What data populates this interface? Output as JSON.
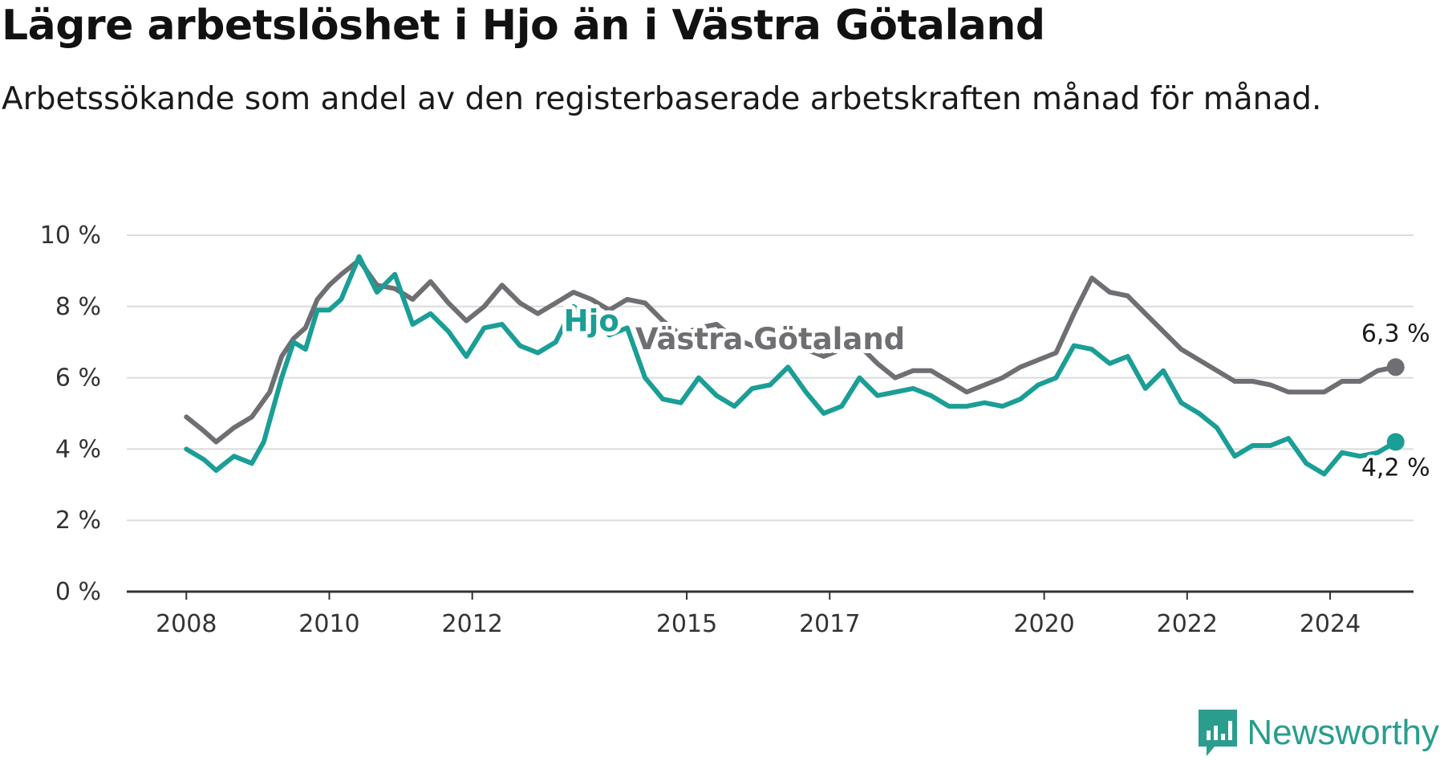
{
  "title": "Lägre arbetslöshet i Hjo än i Västra Götaland",
  "subtitle": "Arbetssökande som andel av den registerbaserade arbetskraften månad för månad.",
  "brand": {
    "name": "Newsworthy",
    "color": "#2a9d8f",
    "icon": "newsworthy-logo-icon"
  },
  "chart_data": {
    "type": "line",
    "title": "Lägre arbetslöshet i Hjo än i Västra Götaland",
    "subtitle": "Arbetssökande som andel av den registerbaserade arbetskraften månad för månad.",
    "xlabel": "",
    "ylabel": "",
    "x_ticks": [
      "2008",
      "2010",
      "2012",
      "2015",
      "2017",
      "2020",
      "2022",
      "2024"
    ],
    "y_ticks": [
      "0 %",
      "2 %",
      "4 %",
      "6 %",
      "8 %",
      "10 %"
    ],
    "ylim": [
      0,
      10
    ],
    "xlim": [
      "2007-03",
      "2025-03"
    ],
    "grid": true,
    "series": [
      {
        "name": "Västra Götaland",
        "color": "#6e6e73",
        "end_label": "6,3 %",
        "points": [
          [
            "2008-01",
            4.9
          ],
          [
            "2008-04",
            4.5
          ],
          [
            "2008-06",
            4.2
          ],
          [
            "2008-09",
            4.6
          ],
          [
            "2008-12",
            4.9
          ],
          [
            "2009-03",
            5.6
          ],
          [
            "2009-05",
            6.6
          ],
          [
            "2009-07",
            7.1
          ],
          [
            "2009-09",
            7.4
          ],
          [
            "2009-11",
            8.2
          ],
          [
            "2010-01",
            8.6
          ],
          [
            "2010-03",
            8.9
          ],
          [
            "2010-06",
            9.3
          ],
          [
            "2010-09",
            8.6
          ],
          [
            "2010-12",
            8.5
          ],
          [
            "2011-03",
            8.2
          ],
          [
            "2011-06",
            8.7
          ],
          [
            "2011-09",
            8.1
          ],
          [
            "2011-12",
            7.6
          ],
          [
            "2012-03",
            8.0
          ],
          [
            "2012-06",
            8.6
          ],
          [
            "2012-09",
            8.1
          ],
          [
            "2012-12",
            7.8
          ],
          [
            "2013-03",
            8.1
          ],
          [
            "2013-06",
            8.4
          ],
          [
            "2013-09",
            8.2
          ],
          [
            "2013-12",
            7.9
          ],
          [
            "2014-03",
            8.2
          ],
          [
            "2014-06",
            8.1
          ],
          [
            "2014-09",
            7.6
          ],
          [
            "2014-12",
            7.2
          ],
          [
            "2015-03",
            7.4
          ],
          [
            "2015-06",
            7.5
          ],
          [
            "2015-09",
            7.1
          ],
          [
            "2015-12",
            6.9
          ],
          [
            "2016-03",
            7.1
          ],
          [
            "2016-06",
            7.2
          ],
          [
            "2016-09",
            6.8
          ],
          [
            "2016-12",
            6.6
          ],
          [
            "2017-03",
            6.8
          ],
          [
            "2017-06",
            6.9
          ],
          [
            "2017-09",
            6.4
          ],
          [
            "2017-12",
            6.0
          ],
          [
            "2018-03",
            6.2
          ],
          [
            "2018-06",
            6.2
          ],
          [
            "2018-09",
            5.9
          ],
          [
            "2018-12",
            5.6
          ],
          [
            "2019-03",
            5.8
          ],
          [
            "2019-06",
            6.0
          ],
          [
            "2019-09",
            6.3
          ],
          [
            "2019-12",
            6.5
          ],
          [
            "2020-03",
            6.7
          ],
          [
            "2020-06",
            7.8
          ],
          [
            "2020-09",
            8.8
          ],
          [
            "2020-12",
            8.4
          ],
          [
            "2021-03",
            8.3
          ],
          [
            "2021-06",
            7.8
          ],
          [
            "2021-09",
            7.3
          ],
          [
            "2021-12",
            6.8
          ],
          [
            "2022-03",
            6.5
          ],
          [
            "2022-06",
            6.2
          ],
          [
            "2022-09",
            5.9
          ],
          [
            "2022-12",
            5.9
          ],
          [
            "2023-03",
            5.8
          ],
          [
            "2023-06",
            5.6
          ],
          [
            "2023-09",
            5.6
          ],
          [
            "2023-12",
            5.6
          ],
          [
            "2024-03",
            5.9
          ],
          [
            "2024-06",
            5.9
          ],
          [
            "2024-09",
            6.2
          ],
          [
            "2024-12",
            6.3
          ]
        ]
      },
      {
        "name": "Hjo",
        "color": "#1a9e96",
        "end_label": "4,2 %",
        "points": [
          [
            "2008-01",
            4.0
          ],
          [
            "2008-04",
            3.7
          ],
          [
            "2008-06",
            3.4
          ],
          [
            "2008-09",
            3.8
          ],
          [
            "2008-12",
            3.6
          ],
          [
            "2009-02",
            4.2
          ],
          [
            "2009-05",
            6.0
          ],
          [
            "2009-07",
            7.0
          ],
          [
            "2009-09",
            6.8
          ],
          [
            "2009-11",
            7.9
          ],
          [
            "2010-01",
            7.9
          ],
          [
            "2010-03",
            8.2
          ],
          [
            "2010-06",
            9.4
          ],
          [
            "2010-09",
            8.4
          ],
          [
            "2010-12",
            8.9
          ],
          [
            "2011-03",
            7.5
          ],
          [
            "2011-06",
            7.8
          ],
          [
            "2011-09",
            7.3
          ],
          [
            "2011-12",
            6.6
          ],
          [
            "2012-03",
            7.4
          ],
          [
            "2012-06",
            7.5
          ],
          [
            "2012-09",
            6.9
          ],
          [
            "2012-12",
            6.7
          ],
          [
            "2013-03",
            7.0
          ],
          [
            "2013-06",
            8.0
          ],
          [
            "2013-09",
            7.6
          ],
          [
            "2013-12",
            7.2
          ],
          [
            "2014-03",
            7.4
          ],
          [
            "2014-06",
            6.0
          ],
          [
            "2014-09",
            5.4
          ],
          [
            "2014-12",
            5.3
          ],
          [
            "2015-03",
            6.0
          ],
          [
            "2015-06",
            5.5
          ],
          [
            "2015-09",
            5.2
          ],
          [
            "2015-12",
            5.7
          ],
          [
            "2016-03",
            5.8
          ],
          [
            "2016-06",
            6.3
          ],
          [
            "2016-09",
            5.6
          ],
          [
            "2016-12",
            5.0
          ],
          [
            "2017-03",
            5.2
          ],
          [
            "2017-06",
            6.0
          ],
          [
            "2017-09",
            5.5
          ],
          [
            "2017-12",
            5.6
          ],
          [
            "2018-03",
            5.7
          ],
          [
            "2018-06",
            5.5
          ],
          [
            "2018-09",
            5.2
          ],
          [
            "2018-12",
            5.2
          ],
          [
            "2019-03",
            5.3
          ],
          [
            "2019-06",
            5.2
          ],
          [
            "2019-09",
            5.4
          ],
          [
            "2019-12",
            5.8
          ],
          [
            "2020-03",
            6.0
          ],
          [
            "2020-06",
            6.9
          ],
          [
            "2020-09",
            6.8
          ],
          [
            "2020-12",
            6.4
          ],
          [
            "2021-03",
            6.6
          ],
          [
            "2021-06",
            5.7
          ],
          [
            "2021-09",
            6.2
          ],
          [
            "2021-12",
            5.3
          ],
          [
            "2022-03",
            5.0
          ],
          [
            "2022-06",
            4.6
          ],
          [
            "2022-09",
            3.8
          ],
          [
            "2022-12",
            4.1
          ],
          [
            "2023-03",
            4.1
          ],
          [
            "2023-06",
            4.3
          ],
          [
            "2023-09",
            3.6
          ],
          [
            "2023-12",
            3.3
          ],
          [
            "2024-03",
            3.9
          ],
          [
            "2024-06",
            3.8
          ],
          [
            "2024-09",
            3.9
          ],
          [
            "2024-12",
            4.2
          ]
        ]
      }
    ]
  }
}
